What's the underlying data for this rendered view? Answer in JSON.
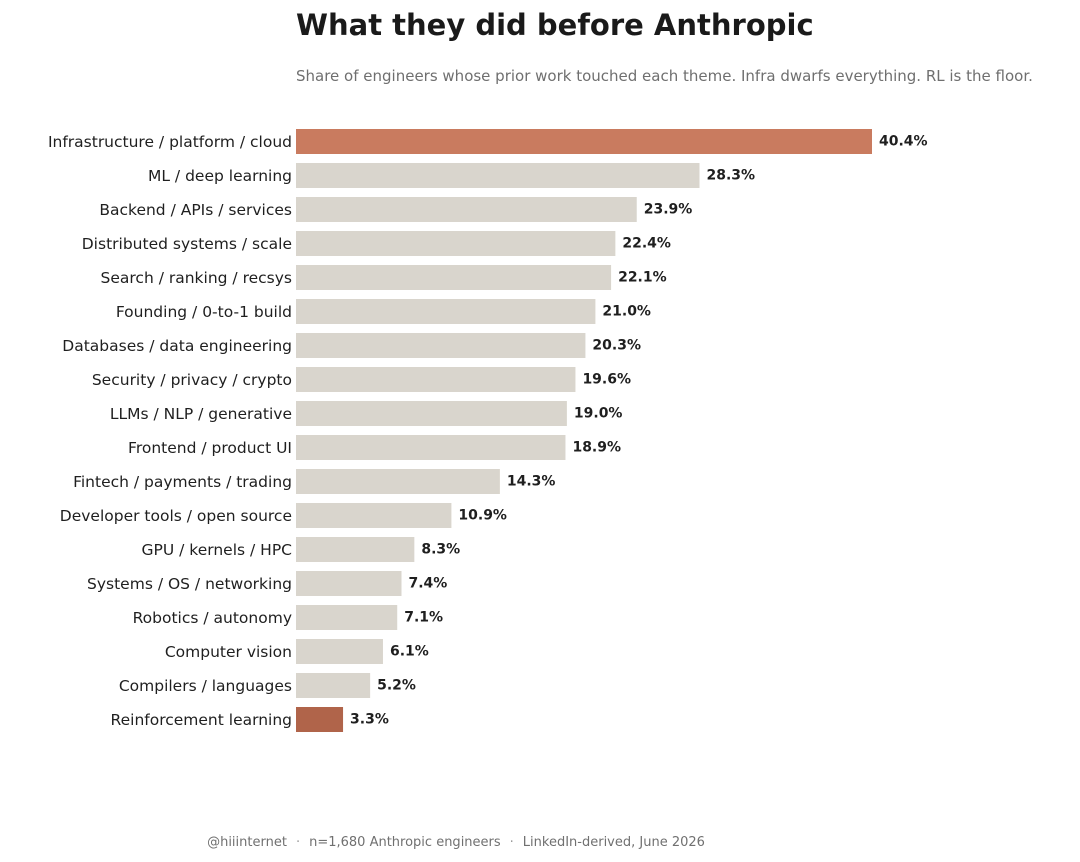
{
  "chart_data": {
    "type": "bar",
    "orientation": "horizontal",
    "title": "What they did before Anthropic",
    "subtitle": "Share of engineers whose prior work touched each theme. Infra dwarfs everything. RL is the floor.",
    "categories": [
      "Infrastructure / platform / cloud",
      "ML / deep learning",
      "Backend / APIs / services",
      "Distributed systems / scale",
      "Search / ranking / recsys",
      "Founding / 0-to-1 build",
      "Databases / data engineering",
      "Security / privacy / crypto",
      "LLMs / NLP / generative",
      "Frontend / product UI",
      "Fintech / payments / trading",
      "Developer tools / open source",
      "GPU / kernels / HPC",
      "Systems / OS / networking",
      "Robotics / autonomy",
      "Computer vision",
      "Compilers / languages",
      "Reinforcement learning"
    ],
    "values": [
      40.4,
      28.3,
      23.9,
      22.4,
      22.1,
      21.0,
      20.3,
      19.6,
      19.0,
      18.9,
      14.3,
      10.9,
      8.3,
      7.4,
      7.1,
      6.1,
      5.2,
      3.3
    ],
    "value_labels": [
      "40.4%",
      "28.3%",
      "23.9%",
      "22.4%",
      "22.1%",
      "21.0%",
      "20.3%",
      "19.6%",
      "19.0%",
      "18.9%",
      "14.3%",
      "10.9%",
      "8.3%",
      "7.4%",
      "7.1%",
      "6.1%",
      "5.2%",
      "3.3%"
    ],
    "xlim": [
      0,
      40.4
    ],
    "grid": false,
    "legend": "none",
    "colors": {
      "default": "#d9d5cd",
      "highlight_top": "#c97b5f",
      "highlight_bottom": "#b0644a"
    },
    "highlighted": {
      "Infrastructure / platform / cloud": "highlight_top",
      "Reinforcement learning": "highlight_bottom"
    }
  },
  "footer": {
    "handle": "@hiiinternet",
    "sample": "n=1,680 Anthropic engineers",
    "source": "LinkedIn-derived, June 2026",
    "separator": "·"
  }
}
